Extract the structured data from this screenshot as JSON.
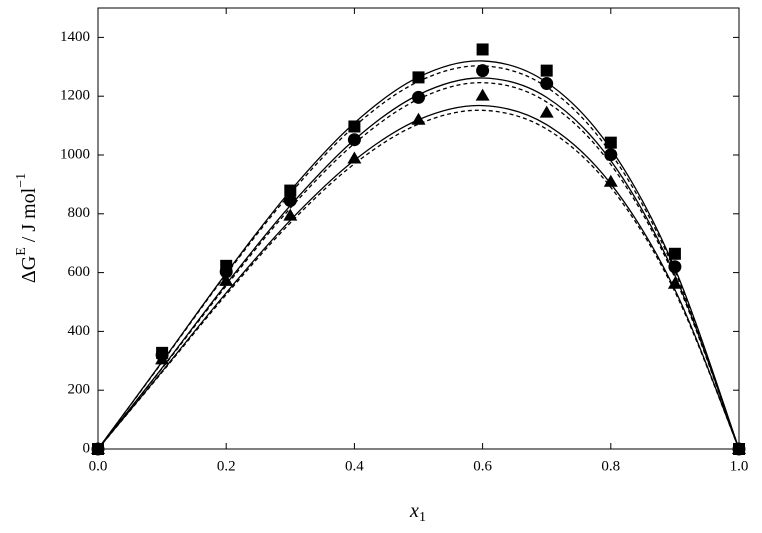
{
  "chart_data": {
    "type": "scatter",
    "x": [
      0,
      0.1,
      0.2,
      0.3,
      0.4,
      0.5,
      0.6,
      0.7,
      0.8,
      0.9,
      1
    ],
    "series": [
      {
        "marker": "square",
        "color": "#000000",
        "values": [
          0,
          327,
          623,
          879,
          1097,
          1264,
          1359,
          1287,
          1042,
          664,
          0
        ]
      },
      {
        "marker": "circle",
        "color": "#000000",
        "values": [
          0,
          320,
          603,
          845,
          1052,
          1196,
          1287,
          1243,
          1001,
          620,
          0
        ]
      },
      {
        "marker": "triangle",
        "color": "#000000",
        "values": [
          0,
          305,
          572,
          794,
          988,
          1120,
          1202,
          1144,
          909,
          562,
          0
        ]
      },
      {
        "line": "solid",
        "color": "#000000",
        "values": [
          0,
          297,
          598,
          878,
          1109,
          1265,
          1320,
          1247,
          1021,
          614,
          0
        ]
      },
      {
        "line": "dashed",
        "color": "#000000",
        "values": [
          0,
          295,
          594,
          869,
          1097,
          1250,
          1303,
          1231,
          1006,
          605,
          0
        ]
      },
      {
        "line": "solid",
        "color": "#000000",
        "values": [
          0,
          276,
          561,
          828,
          1052,
          1205,
          1262,
          1196,
          981,
          591,
          0
        ]
      },
      {
        "line": "dashed",
        "color": "#000000",
        "values": [
          0,
          274,
          555,
          819,
          1039,
          1190,
          1246,
          1180,
          968,
          583,
          0
        ]
      },
      {
        "line": "solid",
        "color": "#000000",
        "values": [
          0,
          264,
          531,
          778,
          982,
          1120,
          1168,
          1103,
          902,
          542,
          0
        ]
      },
      {
        "line": "dashed",
        "color": "#000000",
        "values": [
          0,
          261,
          525,
          769,
          970,
          1105,
          1152,
          1088,
          890,
          535,
          0
        ]
      }
    ],
    "xlim": [
      0,
      1
    ],
    "ylim": [
      0,
      1500
    ],
    "xticks": [
      {
        "value": 0,
        "label": "0.0"
      },
      {
        "value": 0.2,
        "label": "0.2"
      },
      {
        "value": 0.4,
        "label": "0.4"
      },
      {
        "value": 0.6,
        "label": "0.6"
      },
      {
        "value": 0.8,
        "label": "0.8"
      },
      {
        "value": 1,
        "label": "1.0"
      }
    ],
    "yticks": [
      0,
      200,
      400,
      600,
      800,
      1000,
      1200,
      1400
    ],
    "x_label": [
      "x",
      "1"
    ],
    "y_label": [
      "ΔG",
      "E",
      " / J mol",
      "−1"
    ],
    "grid": false
  }
}
